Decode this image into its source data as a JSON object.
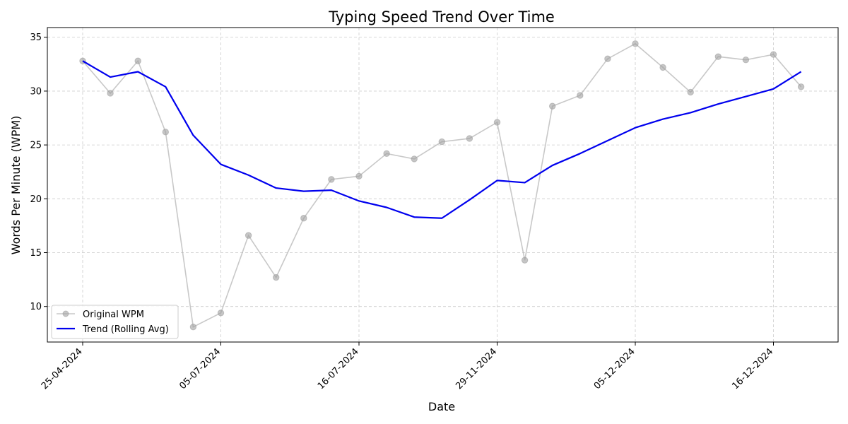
{
  "chart_data": {
    "type": "line",
    "title": "Typing Speed Trend Over Time",
    "xlabel": "Date",
    "ylabel": "Words Per Minute (WPM)",
    "ylim": [
      6.7,
      35.9
    ],
    "yticks": [
      10,
      15,
      20,
      25,
      30,
      35
    ],
    "grid": true,
    "legend_position": "lower-left",
    "x_tick_labels": [
      "25-04-2024",
      "05-07-2024",
      "16-07-2024",
      "29-11-2024",
      "05-12-2024",
      "16-12-2024"
    ],
    "series": [
      {
        "name": "Original WPM",
        "color": "#b0b0b0",
        "marker": "circle",
        "values": [
          32.8,
          29.8,
          32.8,
          26.2,
          8.1,
          9.4,
          16.6,
          12.7,
          18.2,
          21.8,
          22.1,
          24.2,
          23.7,
          25.3,
          25.6,
          27.1,
          14.3,
          28.6,
          29.6,
          33.0,
          34.4,
          32.2,
          29.9,
          33.2,
          32.9,
          33.4,
          30.4
        ]
      },
      {
        "name": "Trend (Rolling Avg)",
        "color": "#0000ee",
        "marker": "none",
        "values": [
          32.8,
          31.3,
          31.8,
          30.4,
          25.9,
          23.2,
          22.2,
          21.0,
          20.7,
          20.8,
          19.8,
          19.2,
          18.3,
          18.2,
          19.9,
          21.7,
          21.5,
          23.1,
          24.2,
          25.4,
          26.6,
          27.4,
          28.0,
          28.8,
          29.5,
          30.2,
          31.8
        ]
      }
    ]
  }
}
